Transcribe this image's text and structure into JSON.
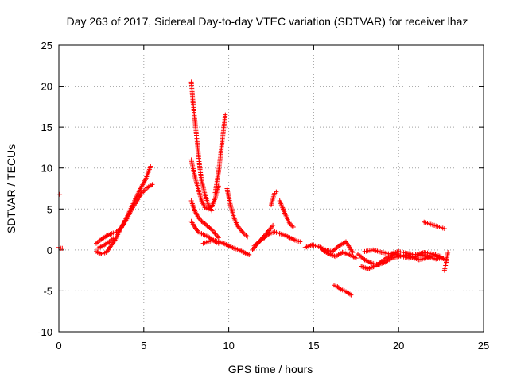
{
  "chart_data": {
    "type": "scatter",
    "title": "Day 263 of 2017, Sidereal Day-to-day VTEC variation (SDTVAR) for receiver lhaz",
    "xlabel": "GPS time / hours",
    "ylabel": "SDTVAR / TECUs",
    "xlim": [
      0,
      25
    ],
    "ylim": [
      -10,
      25
    ],
    "xticks": [
      "0",
      "5",
      "10",
      "15",
      "20",
      "25"
    ],
    "yticks": [
      "-10",
      "-5",
      "0",
      "5",
      "10",
      "15",
      "20",
      "25"
    ],
    "grid": true,
    "marker": "+",
    "color": "#ff0000",
    "segments": [
      {
        "x": [
          0.0,
          0.1,
          0.2
        ],
        "y": [
          0.3,
          0.2,
          0.2
        ]
      },
      {
        "x": [
          0.05
        ],
        "y": [
          6.8
        ]
      },
      {
        "x": [
          2.2,
          2.5,
          2.8,
          3.0,
          3.3,
          3.6,
          3.9,
          4.2,
          4.5,
          4.8,
          5.1,
          5.4
        ],
        "y": [
          -0.2,
          -0.5,
          -0.3,
          0.3,
          1.2,
          2.4,
          3.6,
          4.9,
          6.2,
          7.5,
          8.6,
          10.2
        ]
      },
      {
        "x": [
          2.2,
          2.5,
          2.8,
          3.1,
          3.4,
          3.7,
          4.0,
          4.3,
          4.6,
          4.9,
          5.2,
          5.5
        ],
        "y": [
          0.8,
          1.3,
          1.7,
          2.0,
          2.2,
          2.8,
          3.8,
          5.0,
          6.0,
          7.0,
          7.6,
          8.0
        ]
      },
      {
        "x": [
          2.3,
          2.6,
          2.9,
          3.2
        ],
        "y": [
          0.2,
          0.5,
          0.9,
          1.4
        ]
      },
      {
        "x": [
          7.8,
          7.9,
          8.0,
          8.1,
          8.2,
          8.3,
          8.4
        ],
        "y": [
          20.5,
          18.0,
          16.0,
          14.0,
          12.0,
          10.0,
          8.5
        ]
      },
      {
        "x": [
          8.4,
          8.6,
          8.8,
          9.0
        ],
        "y": [
          8.5,
          6.8,
          5.5,
          4.8
        ]
      },
      {
        "x": [
          9.2,
          9.4,
          9.6,
          9.8
        ],
        "y": [
          7.0,
          9.5,
          13.0,
          16.5
        ]
      },
      {
        "x": [
          7.8,
          8.0,
          8.2,
          8.4,
          8.6,
          8.8,
          9.0,
          9.2,
          9.4
        ],
        "y": [
          11.0,
          9.0,
          7.5,
          6.0,
          5.2,
          5.0,
          5.3,
          6.3,
          7.8
        ]
      },
      {
        "x": [
          7.8,
          8.0,
          8.2,
          8.4,
          8.6,
          8.8,
          9.0,
          9.2,
          9.4
        ],
        "y": [
          6.0,
          4.8,
          4.0,
          3.5,
          3.2,
          2.8,
          2.5,
          2.0,
          1.5
        ]
      },
      {
        "x": [
          7.8,
          8.0,
          8.2,
          8.4,
          8.6,
          8.8,
          9.0,
          9.2,
          9.4
        ],
        "y": [
          3.5,
          2.8,
          2.2,
          2.0,
          1.8,
          1.6,
          1.3,
          1.0,
          0.8
        ]
      },
      {
        "x": [
          8.5,
          8.8,
          9.1,
          9.4,
          9.7,
          10.0,
          10.3,
          10.6,
          10.9,
          11.2
        ],
        "y": [
          0.8,
          1.0,
          1.2,
          1.0,
          0.8,
          0.5,
          0.2,
          0.0,
          -0.3,
          -0.6
        ]
      },
      {
        "x": [
          9.9,
          10.1,
          10.3,
          10.5,
          10.8,
          11.1
        ],
        "y": [
          7.5,
          5.5,
          4.0,
          3.0,
          2.2,
          1.6
        ]
      },
      {
        "x": [
          11.5,
          11.8,
          12.1,
          12.4,
          12.7,
          13.0,
          13.3,
          13.6,
          13.9,
          14.2
        ],
        "y": [
          0.5,
          1.0,
          1.5,
          2.0,
          2.2,
          2.0,
          1.8,
          1.5,
          1.2,
          1.0
        ]
      },
      {
        "x": [
          11.4,
          11.7,
          12.0,
          12.3,
          12.6
        ],
        "y": [
          0.0,
          0.8,
          1.5,
          2.2,
          3.0
        ]
      },
      {
        "x": [
          12.5,
          12.6,
          12.7,
          12.8
        ],
        "y": [
          5.5,
          6.3,
          6.9,
          7.1
        ]
      },
      {
        "x": [
          13.0,
          13.2,
          13.4,
          13.6,
          13.8
        ],
        "y": [
          6.0,
          5.0,
          4.0,
          3.2,
          2.8
        ]
      },
      {
        "x": [
          14.5,
          14.9,
          15.3,
          15.7,
          16.1,
          16.5,
          16.9,
          17.3
        ],
        "y": [
          0.3,
          0.6,
          0.4,
          0.0,
          -0.2,
          0.5,
          1.0,
          -0.3
        ]
      },
      {
        "x": [
          15.5,
          15.9,
          16.3,
          16.7,
          17.1,
          17.5
        ],
        "y": [
          0.0,
          -0.5,
          -0.8,
          -0.3,
          -0.6,
          -1.0
        ]
      },
      {
        "x": [
          16.2,
          16.4,
          16.6,
          16.8,
          17.0,
          17.2
        ],
        "y": [
          -4.3,
          -4.5,
          -4.8,
          -5.0,
          -5.2,
          -5.5
        ]
      },
      {
        "x": [
          17.6,
          18.0,
          18.4,
          18.8,
          19.2,
          19.6,
          20.0,
          20.4,
          20.8,
          21.2,
          21.6,
          22.0,
          22.4,
          22.8
        ],
        "y": [
          -0.5,
          -1.2,
          -1.6,
          -1.8,
          -1.5,
          -1.0,
          -0.8,
          -0.6,
          -0.9,
          -1.2,
          -1.0,
          -0.7,
          -0.9,
          -1.2
        ]
      },
      {
        "x": [
          17.8,
          18.2,
          18.6,
          19.0,
          19.4,
          19.8,
          20.2,
          20.6,
          21.0,
          21.4,
          21.8,
          22.2,
          22.6
        ],
        "y": [
          -2.0,
          -2.3,
          -2.0,
          -1.4,
          -0.8,
          -0.5,
          -0.8,
          -1.0,
          -0.8,
          -0.6,
          -0.9,
          -1.1,
          -1.0
        ]
      },
      {
        "x": [
          18.0,
          18.5,
          19.0,
          19.5,
          20.0,
          20.5,
          21.0,
          21.5,
          22.0,
          22.5
        ],
        "y": [
          -0.2,
          0.0,
          -0.3,
          -0.5,
          -0.2,
          -0.4,
          -0.6,
          -0.3,
          -0.5,
          -0.8
        ]
      },
      {
        "x": [
          21.5,
          21.8,
          22.1,
          22.4,
          22.7
        ],
        "y": [
          3.4,
          3.2,
          3.0,
          2.8,
          2.6
        ]
      },
      {
        "x": [
          22.7,
          22.8,
          22.9
        ],
        "y": [
          -2.5,
          -1.5,
          -0.3
        ]
      }
    ]
  }
}
